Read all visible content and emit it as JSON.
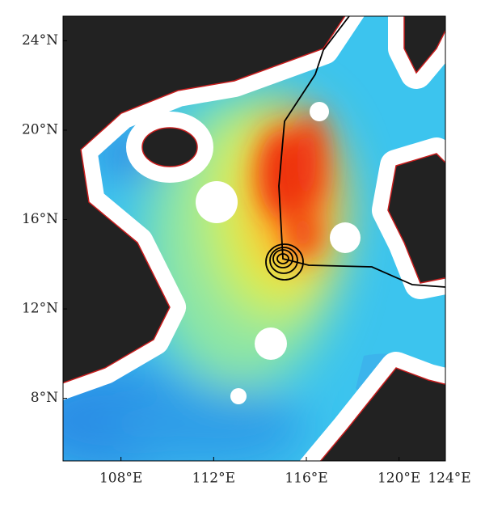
{
  "map": {
    "xlim": [
      105.5,
      122
    ],
    "ylim": [
      5.2,
      25.1
    ],
    "xticks": [
      {
        "value": 108,
        "label": "108°E"
      },
      {
        "value": 112,
        "label": "112°E"
      },
      {
        "value": 116,
        "label": "116°E"
      },
      {
        "value": 120,
        "label": "120°E"
      },
      {
        "value": 124,
        "label": "124°E"
      }
    ],
    "yticks": [
      {
        "value": 24,
        "label": "24°N"
      },
      {
        "value": 20,
        "label": "20°N"
      },
      {
        "value": 16,
        "label": "16°N"
      },
      {
        "value": 12,
        "label": "12°N"
      },
      {
        "value": 8,
        "label": "8°N"
      }
    ]
  }
}
